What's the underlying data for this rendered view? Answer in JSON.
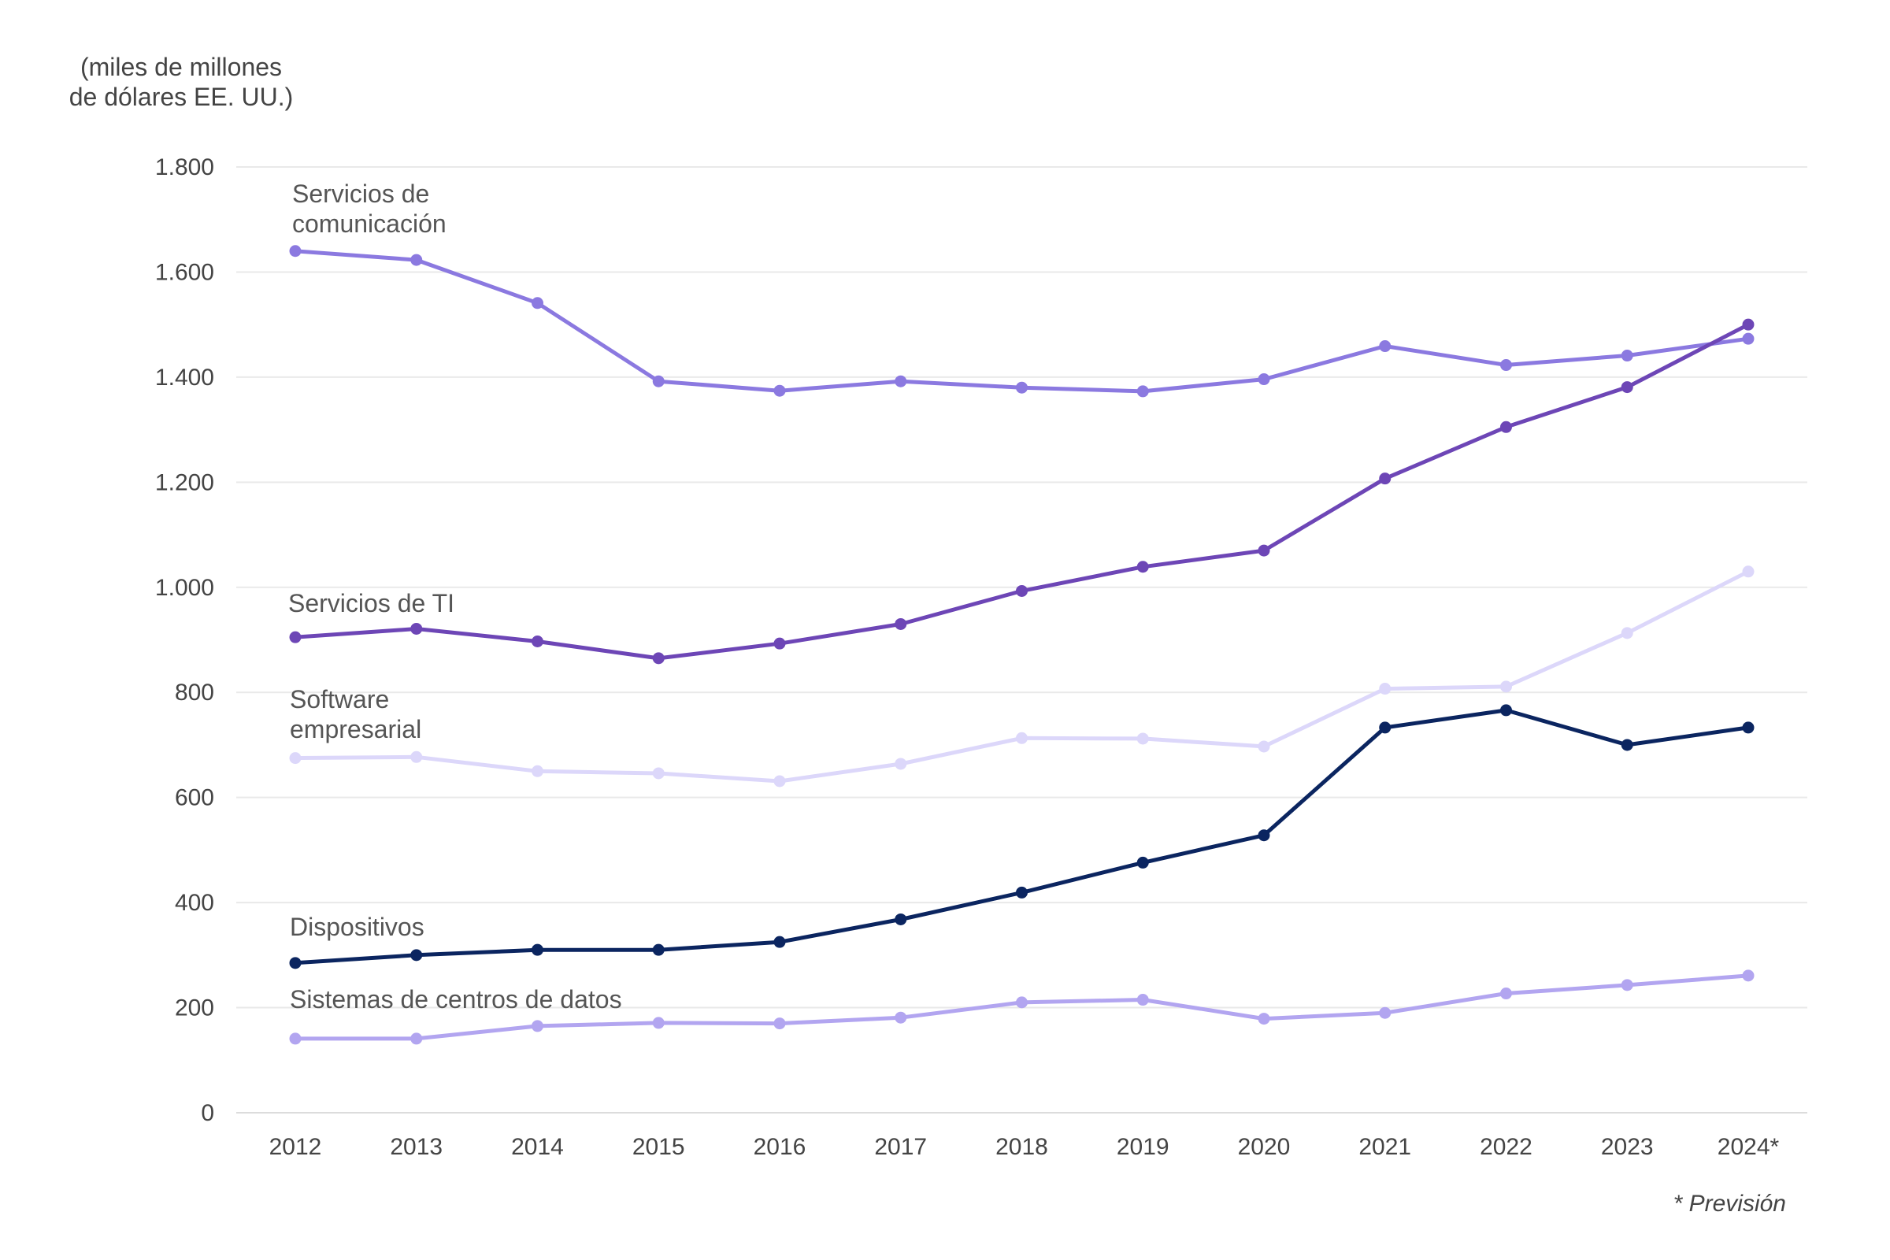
{
  "chart_data": {
    "type": "line",
    "title": "",
    "ylabel_lines": [
      "(miles de millones",
      "de dólares EE. UU.)"
    ],
    "xlabel": "",
    "categories": [
      "2012",
      "2013",
      "2014",
      "2015",
      "2016",
      "2017",
      "2018",
      "2019",
      "2020",
      "2021",
      "2022",
      "2023",
      "2024*"
    ],
    "ylim": [
      0,
      1800
    ],
    "yticks": [
      0,
      200,
      400,
      600,
      800,
      1000,
      1200,
      1400,
      1600,
      1800
    ],
    "ytick_labels": [
      "0",
      "200",
      "400",
      "600",
      "800",
      "1.000",
      "1.200",
      "1.400",
      "1.600",
      "1.800"
    ],
    "grid": true,
    "series": [
      {
        "name": "Servicios de comunicación",
        "label_lines": [
          "Servicios de",
          "comunicación"
        ],
        "color": "#8b79e0",
        "values": [
          1640,
          1623,
          1541,
          1392,
          1374,
          1392,
          1380,
          1373,
          1396,
          1459,
          1423,
          1441,
          1473
        ]
      },
      {
        "name": "Servicios de TI",
        "label_lines": [
          "Servicios de TI"
        ],
        "color": "#6d46b6",
        "values": [
          905,
          921,
          897,
          865,
          893,
          930,
          993,
          1039,
          1070,
          1207,
          1305,
          1381,
          1500
        ]
      },
      {
        "name": "Software empresarial",
        "label_lines": [
          "Software",
          "empresarial"
        ],
        "color": "#dcd7fa",
        "values": [
          675,
          677,
          650,
          646,
          631,
          664,
          713,
          712,
          697,
          807,
          811,
          913,
          1030
        ]
      },
      {
        "name": "Dispositivos",
        "label_lines": [
          "Dispositivos"
        ],
        "color": "#0b2560",
        "values": [
          285,
          300,
          310,
          310,
          325,
          368,
          419,
          476,
          528,
          733,
          766,
          700,
          733
        ]
      },
      {
        "name": "Sistemas de centros de datos",
        "label_lines": [
          "Sistemas de centros de datos"
        ],
        "color": "#b2a5f0",
        "values": [
          141,
          141,
          165,
          171,
          170,
          181,
          210,
          215,
          179,
          190,
          227,
          243,
          261
        ]
      }
    ],
    "footnote": "* Previsión"
  }
}
